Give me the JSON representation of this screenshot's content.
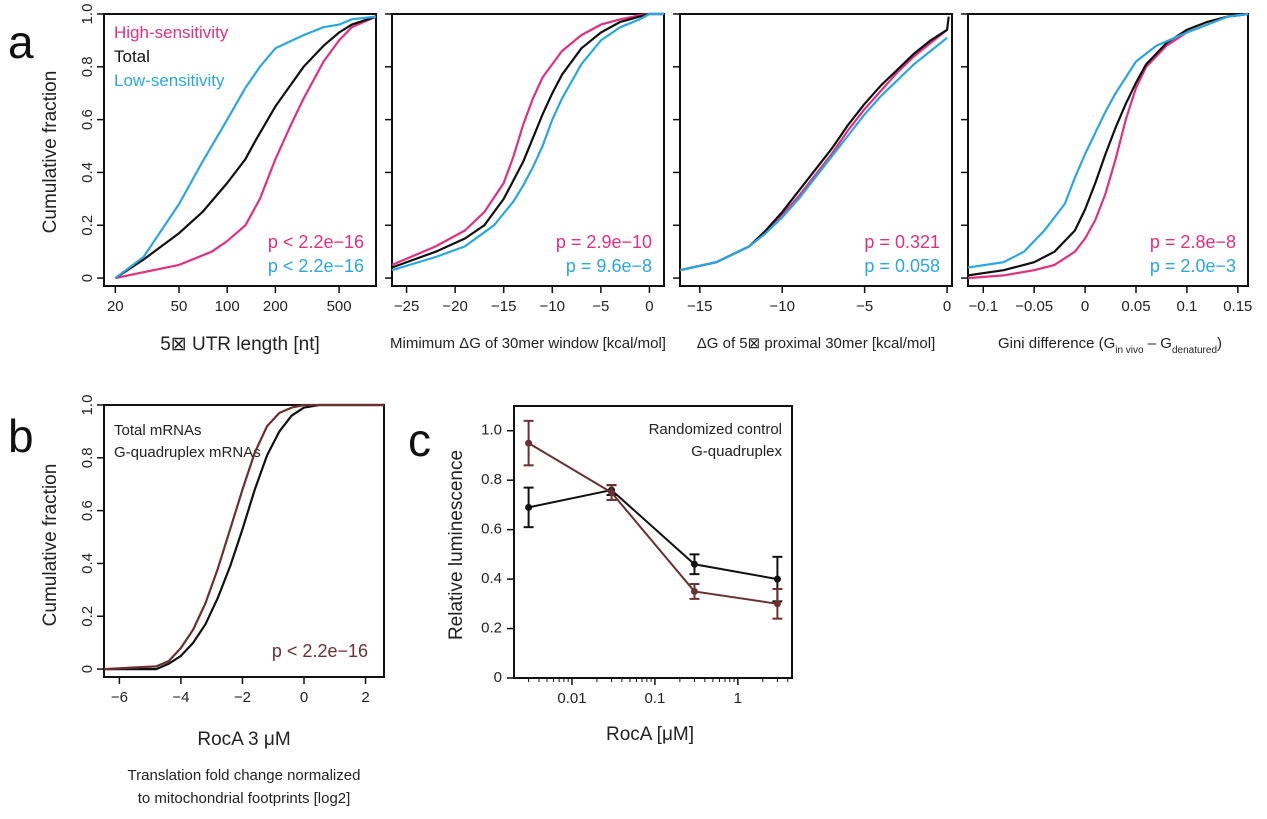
{
  "panels": {
    "a": "a",
    "b": "b",
    "c": "c"
  },
  "colors": {
    "high": "#e0307f",
    "total": "#111111",
    "low": "#2aa7df",
    "gq": "#6b3030",
    "rocA_label": "#c0392b"
  },
  "legend_a": {
    "high": "High-sensitivity",
    "total": "Total",
    "low": "Low-sensitivity"
  },
  "legend_b": {
    "total": "Total mRNAs",
    "gq": "G-quadruplex mRNAs"
  },
  "legend_c": {
    "control": "Randomized control",
    "gq": "G-quadruplex"
  },
  "labels": {
    "ylabel_cum": "Cumulative fraction",
    "ylabel_lum": "Relative luminescence",
    "b_xlabel_colored": "RocA 3 μM",
    "b_xlabel_line1": "Translation fold change normalized",
    "b_xlabel_line2": "to mitochondrial footprints [log2]",
    "c_xlabel": "RocA [μM]"
  },
  "chart_data": [
    {
      "panel": "a1",
      "type": "line",
      "xlabel": "5⊠ UTR length [nt]",
      "xscale": "log",
      "xlim": [
        17,
        850
      ],
      "ylim": [
        -0.03,
        1.0
      ],
      "xticks": [
        20,
        50,
        100,
        200,
        500
      ],
      "yticks": [
        0,
        0.2,
        0.4,
        0.6,
        0.8,
        1.0
      ],
      "p_high": "p < 2.2e−16",
      "p_low": "p < 2.2e−16",
      "series": [
        {
          "name": "High-sensitivity",
          "color": "high",
          "x": [
            20,
            50,
            80,
            100,
            130,
            160,
            200,
            250,
            300,
            400,
            500,
            600,
            850
          ],
          "y": [
            0,
            0.05,
            0.1,
            0.14,
            0.2,
            0.3,
            0.45,
            0.58,
            0.68,
            0.82,
            0.9,
            0.95,
            0.99
          ]
        },
        {
          "name": "Total",
          "color": "total",
          "x": [
            20,
            30,
            50,
            70,
            100,
            130,
            150,
            200,
            300,
            400,
            500,
            600,
            850
          ],
          "y": [
            0,
            0.07,
            0.17,
            0.25,
            0.36,
            0.45,
            0.52,
            0.65,
            0.8,
            0.88,
            0.93,
            0.96,
            0.99
          ]
        },
        {
          "name": "Low-sensitivity",
          "color": "low",
          "x": [
            20,
            30,
            50,
            70,
            100,
            130,
            160,
            200,
            300,
            400,
            500,
            600,
            850
          ],
          "y": [
            0,
            0.08,
            0.28,
            0.44,
            0.6,
            0.72,
            0.8,
            0.87,
            0.92,
            0.95,
            0.96,
            0.98,
            0.99
          ]
        }
      ]
    },
    {
      "panel": "a2",
      "type": "line",
      "xlabel": "Mimimum ΔG of 30mer window [kcal/mol]",
      "xlim": [
        -26.5,
        1.5
      ],
      "ylim": [
        -0.03,
        1.0
      ],
      "xticks": [
        -25,
        -20,
        -15,
        -10,
        -5,
        0
      ],
      "yticks": [
        0,
        0.2,
        0.4,
        0.6,
        0.8,
        1.0
      ],
      "p_high": "p = 2.9e−10",
      "p_low": "p = 9.6e−8",
      "series": [
        {
          "name": "High-sensitivity",
          "color": "high",
          "x": [
            -26.5,
            -22,
            -19,
            -17,
            -15,
            -14,
            -13,
            -12,
            -11,
            -9,
            -7,
            -5,
            -3,
            -1,
            0,
            1.5
          ],
          "y": [
            0.05,
            0.12,
            0.18,
            0.25,
            0.36,
            0.46,
            0.58,
            0.68,
            0.76,
            0.86,
            0.92,
            0.96,
            0.98,
            0.995,
            1.0,
            1.0
          ]
        },
        {
          "name": "Total",
          "color": "total",
          "x": [
            -26.5,
            -22,
            -19,
            -17,
            -15,
            -13,
            -12,
            -11,
            -10,
            -9,
            -7,
            -5,
            -3,
            -1,
            0,
            1.5
          ],
          "y": [
            0.04,
            0.1,
            0.15,
            0.2,
            0.3,
            0.44,
            0.53,
            0.62,
            0.7,
            0.77,
            0.87,
            0.93,
            0.97,
            0.99,
            1.0,
            1.0
          ]
        },
        {
          "name": "Low-sensitivity",
          "color": "low",
          "x": [
            -26.5,
            -22,
            -19,
            -16,
            -14,
            -13,
            -12,
            -11,
            -10,
            -9,
            -7,
            -5,
            -3,
            -1,
            0,
            1.5
          ],
          "y": [
            0.03,
            0.08,
            0.12,
            0.2,
            0.29,
            0.35,
            0.42,
            0.5,
            0.6,
            0.68,
            0.81,
            0.9,
            0.95,
            0.98,
            1.0,
            1.0
          ]
        }
      ]
    },
    {
      "panel": "a3",
      "type": "line",
      "xlabel": "ΔG of 5⊠ proximal 30mer [kcal/mol]",
      "xlim": [
        -16.2,
        0.3
      ],
      "ylim": [
        -0.03,
        1.0
      ],
      "xticks": [
        -15,
        -10,
        -5,
        0
      ],
      "yticks": [
        0,
        0.2,
        0.4,
        0.6,
        0.8,
        1.0
      ],
      "p_high": "p = 0.321",
      "p_low": "p = 0.058",
      "series": [
        {
          "name": "High-sensitivity",
          "color": "high",
          "x": [
            -16.2,
            -14,
            -12,
            -11,
            -10,
            -9,
            -8,
            -7,
            -6,
            -5,
            -4,
            -3,
            -2,
            -1,
            0
          ],
          "y": [
            0.03,
            0.06,
            0.12,
            0.17,
            0.24,
            0.31,
            0.39,
            0.47,
            0.56,
            0.64,
            0.71,
            0.78,
            0.84,
            0.89,
            0.94
          ]
        },
        {
          "name": "Total",
          "color": "total",
          "x": [
            -16.2,
            -14,
            -12,
            -11,
            -10,
            -9,
            -8,
            -7,
            -6,
            -5,
            -4,
            -3,
            -2,
            -1,
            0,
            0.1
          ],
          "y": [
            0.03,
            0.06,
            0.12,
            0.18,
            0.25,
            0.33,
            0.41,
            0.49,
            0.58,
            0.66,
            0.73,
            0.79,
            0.85,
            0.9,
            0.94,
            0.99
          ]
        },
        {
          "name": "Low-sensitivity",
          "color": "low",
          "x": [
            -16.2,
            -14,
            -12,
            -11,
            -10,
            -9,
            -8,
            -7,
            -6,
            -5,
            -4,
            -3,
            -2,
            -1,
            0
          ],
          "y": [
            0.03,
            0.06,
            0.12,
            0.17,
            0.23,
            0.3,
            0.38,
            0.46,
            0.54,
            0.62,
            0.69,
            0.75,
            0.81,
            0.86,
            0.91
          ]
        }
      ]
    },
    {
      "panel": "a4",
      "type": "line",
      "xlabel": "Gini difference (G",
      "xlabel_sub1": "in vivo",
      "xlabel_mid": " – G",
      "xlabel_sub2": "denatured",
      "xlabel_end": ")",
      "xlim": [
        -0.115,
        0.16
      ],
      "ylim": [
        -0.03,
        1.0
      ],
      "xticks": [
        -0.1,
        -0.05,
        0,
        0.05,
        0.1,
        0.15
      ],
      "yticks": [
        0,
        0.2,
        0.4,
        0.6,
        0.8,
        1.0
      ],
      "p_high": "p = 2.8e−8",
      "p_low": "p = 2.0e−3",
      "series": [
        {
          "name": "High-sensitivity",
          "color": "high",
          "x": [
            -0.115,
            -0.08,
            -0.05,
            -0.03,
            -0.01,
            0,
            0.01,
            0.02,
            0.03,
            0.04,
            0.05,
            0.06,
            0.08,
            0.1,
            0.12,
            0.14,
            0.16
          ],
          "y": [
            0.0,
            0.01,
            0.03,
            0.05,
            0.1,
            0.15,
            0.22,
            0.32,
            0.45,
            0.6,
            0.72,
            0.8,
            0.88,
            0.93,
            0.96,
            0.99,
            1.0
          ]
        },
        {
          "name": "Total",
          "color": "total",
          "x": [
            -0.115,
            -0.08,
            -0.05,
            -0.03,
            -0.01,
            0,
            0.01,
            0.02,
            0.03,
            0.04,
            0.05,
            0.06,
            0.08,
            0.1,
            0.12,
            0.14,
            0.16
          ],
          "y": [
            0.01,
            0.03,
            0.06,
            0.1,
            0.18,
            0.26,
            0.36,
            0.47,
            0.57,
            0.66,
            0.74,
            0.81,
            0.89,
            0.94,
            0.97,
            0.99,
            1.0
          ]
        },
        {
          "name": "Low-sensitivity",
          "color": "low",
          "x": [
            -0.115,
            -0.08,
            -0.06,
            -0.04,
            -0.02,
            -0.01,
            0,
            0.01,
            0.02,
            0.03,
            0.04,
            0.05,
            0.07,
            0.1,
            0.12,
            0.14,
            0.16
          ],
          "y": [
            0.04,
            0.06,
            0.1,
            0.18,
            0.28,
            0.38,
            0.47,
            0.55,
            0.63,
            0.7,
            0.76,
            0.82,
            0.88,
            0.93,
            0.96,
            0.99,
            1.0
          ]
        }
      ]
    },
    {
      "panel": "b",
      "type": "line",
      "xlim": [
        -6.5,
        2.6
      ],
      "ylim": [
        -0.03,
        1.0
      ],
      "xticks": [
        -6,
        -4,
        -2,
        0,
        2
      ],
      "yticks": [
        0,
        0.2,
        0.4,
        0.6,
        0.8,
        1.0
      ],
      "p_value": "p < 2.2e−16",
      "series": [
        {
          "name": "Total mRNAs",
          "color": "total",
          "x": [
            -6.5,
            -4.8,
            -4.4,
            -4,
            -3.6,
            -3.2,
            -2.8,
            -2.4,
            -2,
            -1.6,
            -1.2,
            -0.8,
            -0.4,
            0,
            0.5,
            2.6
          ],
          "y": [
            0,
            0.0,
            0.02,
            0.05,
            0.1,
            0.17,
            0.27,
            0.39,
            0.53,
            0.68,
            0.81,
            0.9,
            0.96,
            0.99,
            1.0,
            1.0
          ]
        },
        {
          "name": "G-quadruplex mRNAs",
          "color": "gq",
          "x": [
            -6.5,
            -4.8,
            -4.4,
            -4,
            -3.6,
            -3.2,
            -2.8,
            -2.4,
            -2,
            -1.6,
            -1.2,
            -0.8,
            -0.4,
            0,
            2.6
          ],
          "y": [
            0,
            0.01,
            0.03,
            0.08,
            0.15,
            0.25,
            0.38,
            0.53,
            0.68,
            0.82,
            0.92,
            0.97,
            0.99,
            1.0,
            1.0
          ]
        }
      ]
    },
    {
      "panel": "c",
      "type": "line",
      "xscale": "log",
      "xlim": [
        0.002,
        4.5
      ],
      "ylim": [
        0,
        1.1
      ],
      "xticks": [
        0.01,
        0.1,
        1
      ],
      "xtick_labels": [
        "0.01",
        "0.1",
        "1"
      ],
      "yticks": [
        0,
        0.2,
        0.4,
        0.6,
        0.8,
        1.0
      ],
      "ytick_labels": [
        "0",
        "0.2",
        "0.4",
        "0.6",
        "0.8",
        "1.0"
      ],
      "series": [
        {
          "name": "Randomized control",
          "color": "total",
          "x": [
            0.003,
            0.03,
            0.3,
            3
          ],
          "y": [
            0.69,
            0.76,
            0.46,
            0.4
          ],
          "err": [
            0.08,
            0.02,
            0.04,
            0.09
          ]
        },
        {
          "name": "G-quadruplex",
          "color": "gq",
          "x": [
            0.003,
            0.03,
            0.3,
            3
          ],
          "y": [
            0.95,
            0.75,
            0.35,
            0.3
          ],
          "err": [
            0.09,
            0.03,
            0.03,
            0.06
          ]
        }
      ]
    }
  ]
}
